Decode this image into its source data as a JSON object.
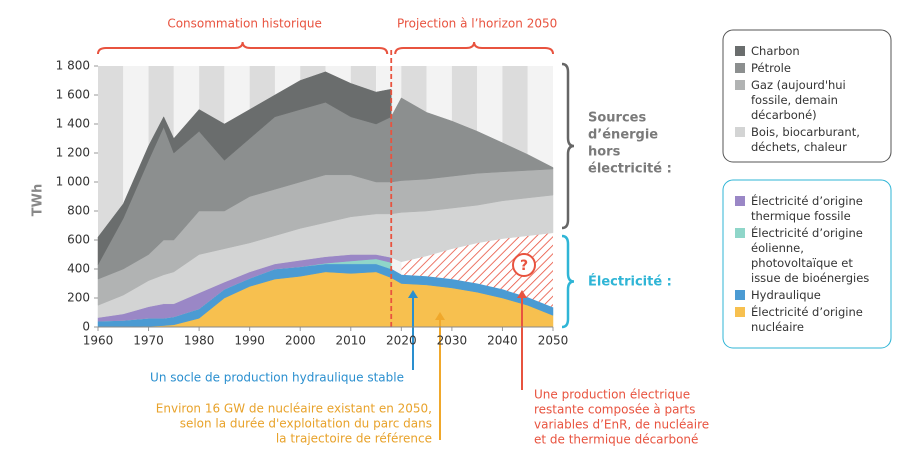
{
  "chart_data": {
    "type": "area",
    "y_label": "TWh",
    "annotations": {
      "historical": "Consommation historique",
      "projection": "Projection à l’horizon 2050",
      "sources": [
        "Sources",
        "d’énergie",
        "hors",
        "électricité :"
      ],
      "electricite": "Électricité :",
      "question": "?",
      "hydro_note": "Un socle de production hydraulique stable",
      "nuclear_note": [
        "Environ 16 GW de nucléaire existant en 2050,",
        "selon la durée d'exploitation du parc dans",
        "la trajectoire de référence"
      ],
      "remaining_note": [
        "Une production électrique",
        "restante composée à parts",
        "variables d’EnR, de nucléaire",
        "et de thermique décarboné"
      ]
    },
    "x": [
      1960,
      1965,
      1970,
      1973,
      1975,
      1980,
      1985,
      1990,
      1995,
      2000,
      2005,
      2010,
      2015,
      2018,
      2020,
      2025,
      2030,
      2035,
      2040,
      2045,
      2050
    ],
    "xlim": [
      1960,
      2050
    ],
    "xticks": [
      1960,
      1970,
      1980,
      1990,
      2000,
      2010,
      2020,
      2030,
      2040,
      2050
    ],
    "ylim": [
      0,
      1800
    ],
    "yticks": [
      0,
      200,
      400,
      600,
      800,
      {
        "value": 1000,
        "label": "1 000"
      },
      {
        "value": 1200,
        "label": "1 200"
      },
      {
        "value": 1400,
        "label": "1 400"
      },
      {
        "value": 1600,
        "label": "1 600"
      },
      {
        "value": 1800,
        "label": "1 800"
      }
    ],
    "series": [
      {
        "name": "Électricité d’origine nucléaire",
        "color": "#f7c04f",
        "values": [
          0,
          0,
          5,
          10,
          15,
          60,
          200,
          280,
          330,
          350,
          380,
          370,
          380,
          340,
          300,
          290,
          270,
          240,
          200,
          150,
          80
        ]
      },
      {
        "name": "Hydraulique",
        "color": "#4b9bd3",
        "values": [
          40,
          45,
          55,
          50,
          55,
          65,
          60,
          55,
          70,
          65,
          55,
          65,
          55,
          60,
          60,
          60,
          60,
          60,
          60,
          55,
          55
        ]
      },
      {
        "name": "Électricité d’origine éolienne, photovoltaïque et issue de bioénergies",
        "color": "#8fd6c9",
        "values": [
          0,
          0,
          0,
          0,
          0,
          0,
          0,
          0,
          0,
          0,
          5,
          20,
          35,
          45,
          null,
          null,
          null,
          null,
          null,
          null,
          null
        ]
      },
      {
        "name": "Électricité d’origine thermique fossile",
        "color": "#9a87c6",
        "values": [
          25,
          45,
          80,
          100,
          90,
          110,
          50,
          45,
          35,
          45,
          45,
          45,
          30,
          35,
          null,
          null,
          null,
          null,
          null,
          null,
          null
        ]
      },
      {
        "color": "#e8533f",
        "pattern": "hatch",
        "values": [
          null,
          null,
          null,
          null,
          null,
          null,
          null,
          null,
          null,
          null,
          null,
          null,
          null,
          null,
          90,
          140,
          210,
          280,
          350,
          425,
          515
        ]
      },
      {
        "name": "Bois, biocarburant, déchets, chaleur",
        "color": "#d3d4d4",
        "values": [
          85,
          130,
          180,
          200,
          220,
          265,
          230,
          200,
          195,
          220,
          235,
          260,
          280,
          300,
          340,
          310,
          280,
          260,
          260,
          260,
          260
        ]
      },
      {
        "name": "Gaz (aujourd'hui fossile, demain décarboné)",
        "color": "#b1b3b3",
        "values": [
          180,
          180,
          180,
          240,
          220,
          300,
          260,
          320,
          320,
          320,
          330,
          290,
          220,
          220,
          220,
          220,
          220,
          220,
          200,
          190,
          180
        ]
      },
      {
        "name": "Pétrole",
        "color": "#8c8f8f",
        "values": [
          100,
          350,
          650,
          780,
          600,
          550,
          350,
          400,
          500,
          500,
          500,
          400,
          400,
          450,
          570,
          460,
          380,
          290,
          200,
          110,
          10
        ]
      },
      {
        "name": "Charbon",
        "color": "#6a6d6d",
        "values": [
          190,
          100,
          100,
          70,
          100,
          150,
          250,
          200,
          150,
          200,
          210,
          230,
          220,
          190,
          null,
          null,
          null,
          null,
          null,
          null,
          null
        ]
      }
    ]
  }
}
